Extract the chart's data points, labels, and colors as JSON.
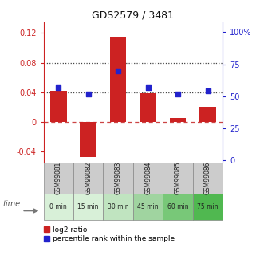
{
  "title": "GDS2579 / 3481",
  "samples": [
    "GSM99081",
    "GSM99082",
    "GSM99083",
    "GSM99084",
    "GSM99085",
    "GSM99086"
  ],
  "time_labels": [
    "0 min",
    "15 min",
    "30 min",
    "45 min",
    "60 min",
    "75 min"
  ],
  "time_colors": [
    "#d8f0d8",
    "#d8f0d8",
    "#c0e4c0",
    "#a0d4a0",
    "#78c878",
    "#50b850"
  ],
  "log2_values": [
    0.042,
    -0.048,
    0.115,
    0.038,
    0.005,
    0.02
  ],
  "percentile_values": [
    57,
    52,
    70,
    57,
    52,
    54
  ],
  "bar_color": "#cc2222",
  "dot_color": "#2222cc",
  "ylim_left": [
    -0.055,
    0.135
  ],
  "ylim_right": [
    -1.5,
    108
  ],
  "yticks_left": [
    -0.04,
    0.0,
    0.04,
    0.08,
    0.12
  ],
  "yticks_right": [
    0,
    25,
    50,
    75,
    100
  ],
  "ytick_labels_left": [
    "-0.04",
    "0",
    "0.04",
    "0.08",
    "0.12"
  ],
  "ytick_labels_right": [
    "0",
    "25",
    "50",
    "75",
    "100%"
  ],
  "hline_y0": 0.0,
  "hline_y1": 0.04,
  "hline_y2": 0.08,
  "bg_color": "#ffffff",
  "gray_box_color": "#cccccc",
  "legend_log2_label": "log2 ratio",
  "legend_pct_label": "percentile rank within the sample"
}
